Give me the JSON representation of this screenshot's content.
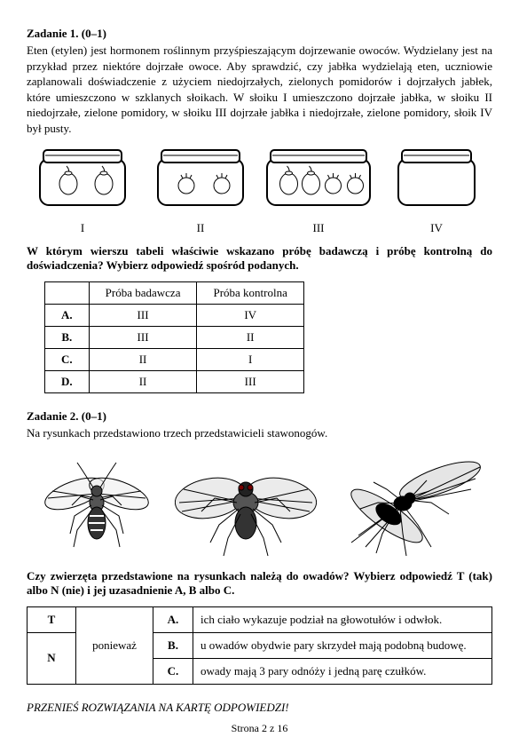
{
  "task1": {
    "heading": "Zadanie 1. (0–1)",
    "text": "Eten (etylen) jest hormonem roślinnym przyśpieszającym dojrzewanie owoców. Wydzielany jest na przykład przez niektóre dojrzałe owoce. Aby sprawdzić, czy jabłka wydzielają eten, uczniowie zaplanowali doświadczenie z użyciem niedojrzałych, zielonych pomidorów i dojrzałych jabłek, które umieszczono w szklanych słoikach. W słoiku I umieszczono dojrzałe jabłka, w słoiku II niedojrzałe, zielone pomidory, w słoiku III dojrzałe jabłka i niedojrzałe, zielone pomidory, słoik IV był pusty.",
    "jars": [
      {
        "roman": "I",
        "contents": [
          "apple",
          "apple"
        ]
      },
      {
        "roman": "II",
        "contents": [
          "tomato",
          "tomato"
        ]
      },
      {
        "roman": "III",
        "contents": [
          "apple",
          "apple",
          "tomato",
          "tomato"
        ]
      },
      {
        "roman": "IV",
        "contents": []
      }
    ],
    "question": "W którym wierszu tabeli właściwie wskazano próbę badawczą i próbę kontrolną do doświadczenia? Wybierz odpowiedź spośród podanych.",
    "table": {
      "headers": [
        "",
        "Próba badawcza",
        "Próba kontrolna"
      ],
      "rows": [
        {
          "label": "A.",
          "c1": "III",
          "c2": "IV"
        },
        {
          "label": "B.",
          "c1": "III",
          "c2": "II"
        },
        {
          "label": "C.",
          "c1": "II",
          "c2": "I"
        },
        {
          "label": "D.",
          "c1": "II",
          "c2": "III"
        }
      ]
    }
  },
  "task2": {
    "heading": "Zadanie 2. (0–1)",
    "text": "Na rysunkach przedstawiono trzech przedstawicieli stawonogów.",
    "question": "Czy zwierzęta przedstawione na rysunkach należą do owadów? Wybierz odpowiedź T (tak) albo N (nie) i jej uzasadnienie A, B albo C.",
    "table": {
      "t": "T",
      "n": "N",
      "conj": "ponieważ",
      "rows": [
        {
          "letter": "A.",
          "text": "ich ciało wykazuje podział na głowotułów i odwłok."
        },
        {
          "letter": "B.",
          "text": "u owadów obydwie pary skrzydeł mają podobną budowę."
        },
        {
          "letter": "C.",
          "text": "owady mają 3 pary odnóży i jedną parę czułków."
        }
      ]
    }
  },
  "footer": {
    "instruction": "PRZENIEŚ ROZWIĄZANIA NA KARTĘ ODPOWIEDZI!",
    "page": "Strona 2 z 16"
  }
}
